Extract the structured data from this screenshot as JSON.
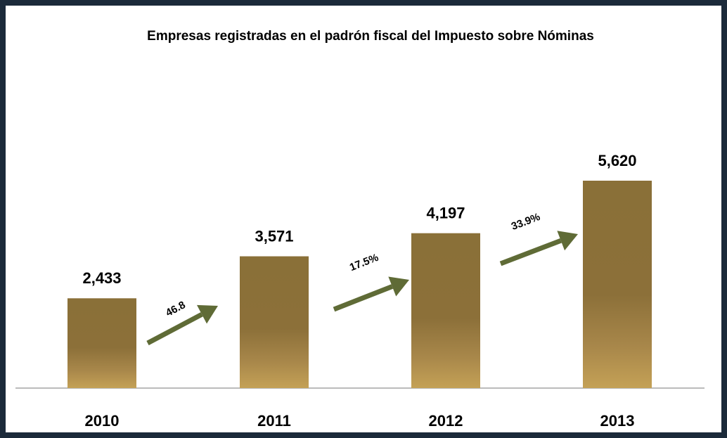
{
  "chart_data": {
    "type": "bar",
    "title": "Empresas registradas en el padrón fiscal del Impuesto sobre Nóminas",
    "categories": [
      "2010",
      "2011",
      "2012",
      "2013"
    ],
    "values": [
      2433,
      3571,
      4197,
      5620
    ],
    "value_labels": [
      "2,433",
      "3,571",
      "4,197",
      "5,620"
    ],
    "color": "#8a7038",
    "annotations": [
      "46.8",
      "17.5%",
      "33.9%"
    ],
    "annotation_color": "#5f6b36"
  }
}
